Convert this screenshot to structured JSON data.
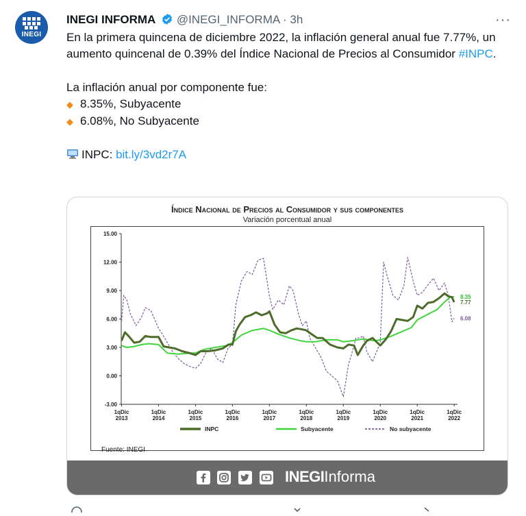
{
  "tweet": {
    "author": "INEGI INFORMA",
    "handle": "@INEGI_INFORMA",
    "separator": "·",
    "time": "3h",
    "more": "···",
    "avatar_text": "INEGI",
    "line1_pre": "En la primera quincena de diciembre 2022, la inflación general anual fue 7.77%, un aumento quincenal de 0.39% del Índice Nacional de Precios al Consumidor ",
    "hashtag": "#INPC",
    "line1_post": ".",
    "components_intro": "La inflación anual por componente fue:",
    "bullets": [
      "8.35%, Subyacente",
      "6.08%, No Subyacente"
    ],
    "bullet_glyph": "◆",
    "link_label": "INPC: ",
    "link_text": "bit.ly/3vd2r7A"
  },
  "card": {
    "title": "Índice Nacional de Precios al Consumidor y sus componentes",
    "subtitle": "Variación porcentual anual",
    "source": "Fuente: INEGI",
    "brand_bold": "INEGI",
    "brand_light": "Informa",
    "social_icons": [
      "facebook-icon",
      "instagram-icon",
      "twitter-icon",
      "youtube-icon"
    ]
  },
  "chart_data": {
    "type": "line",
    "title": "Índice Nacional de Precios al Consumidor y sus componentes",
    "subtitle": "Variación porcentual anual",
    "ylim": [
      -3,
      15
    ],
    "yticks": [
      "15.00",
      "12.00",
      "9.00",
      "6.00",
      "3.00",
      "0.00",
      "-3.00"
    ],
    "ytick_values": [
      15,
      12,
      9,
      6,
      3,
      0,
      -3
    ],
    "xlim": [
      2013.95,
      2023.05
    ],
    "xticks": [
      {
        "top": "1qDic",
        "bottom": "2013",
        "x": 2013.96
      },
      {
        "top": "1qDic",
        "bottom": "2014",
        "x": 2014.96
      },
      {
        "top": "1qDic",
        "bottom": "2015",
        "x": 2015.96
      },
      {
        "top": "1qDic",
        "bottom": "2016",
        "x": 2016.96
      },
      {
        "top": "1qDic",
        "bottom": "2017",
        "x": 2017.96
      },
      {
        "top": "1qDic",
        "bottom": "2018",
        "x": 2018.96
      },
      {
        "top": "1qDic",
        "bottom": "2019",
        "x": 2019.96
      },
      {
        "top": "1qDic",
        "bottom": "2020",
        "x": 2020.96
      },
      {
        "top": "1qDic",
        "bottom": "2021",
        "x": 2021.96
      },
      {
        "top": "1qDic",
        "bottom": "2022",
        "x": 2022.96
      }
    ],
    "series": [
      {
        "name": "INPC",
        "color": "#4d6b2a",
        "style": "solid",
        "width": 3,
        "x": [
          2013.96,
          2014.05,
          2014.15,
          2014.3,
          2014.45,
          2014.6,
          2014.75,
          2014.96,
          2015.1,
          2015.25,
          2015.4,
          2015.6,
          2015.8,
          2015.96,
          2016.1,
          2016.3,
          2016.5,
          2016.7,
          2016.85,
          2016.96,
          2017.05,
          2017.15,
          2017.3,
          2017.45,
          2017.6,
          2017.75,
          2017.9,
          2017.96,
          2018.1,
          2018.25,
          2018.4,
          2018.55,
          2018.7,
          2018.85,
          2018.96,
          2019.1,
          2019.25,
          2019.4,
          2019.6,
          2019.8,
          2019.96,
          2020.1,
          2020.25,
          2020.35,
          2020.5,
          2020.6,
          2020.75,
          2020.96,
          2021.1,
          2021.25,
          2021.4,
          2021.55,
          2021.7,
          2021.85,
          2021.96,
          2022.1,
          2022.25,
          2022.4,
          2022.55,
          2022.7,
          2022.8,
          2022.9,
          2022.96
        ],
        "y": [
          3.7,
          4.6,
          4.2,
          3.5,
          3.6,
          4.2,
          4.1,
          4.1,
          3.1,
          3.0,
          2.9,
          2.6,
          2.4,
          2.2,
          2.6,
          2.6,
          2.7,
          2.9,
          3.3,
          3.3,
          4.7,
          5.4,
          6.2,
          6.4,
          6.7,
          6.4,
          6.6,
          6.8,
          5.4,
          4.6,
          4.5,
          4.8,
          5.0,
          4.9,
          4.8,
          4.4,
          4.0,
          4.0,
          3.3,
          3.0,
          2.9,
          3.3,
          3.2,
          2.2,
          3.2,
          3.7,
          4.0,
          3.2,
          3.8,
          4.7,
          6.0,
          5.9,
          5.8,
          6.2,
          7.4,
          7.1,
          7.7,
          7.8,
          8.2,
          8.7,
          8.4,
          8.3,
          7.77
        ]
      },
      {
        "name": "Subyacente",
        "color": "#3fd43c",
        "style": "solid",
        "width": 2,
        "x": [
          2013.96,
          2014.1,
          2014.3,
          2014.5,
          2014.7,
          2014.96,
          2015.2,
          2015.5,
          2015.8,
          2015.96,
          2016.2,
          2016.5,
          2016.8,
          2016.96,
          2017.2,
          2017.5,
          2017.8,
          2017.96,
          2018.2,
          2018.5,
          2018.8,
          2018.96,
          2019.2,
          2019.5,
          2019.8,
          2019.96,
          2020.2,
          2020.5,
          2020.8,
          2020.96,
          2021.2,
          2021.5,
          2021.8,
          2021.96,
          2022.2,
          2022.5,
          2022.7,
          2022.85,
          2022.96
        ],
        "y": [
          3.2,
          3.0,
          3.1,
          3.3,
          3.4,
          3.3,
          2.4,
          2.3,
          2.4,
          2.4,
          2.8,
          3.0,
          3.2,
          3.5,
          4.3,
          4.8,
          5.0,
          4.8,
          4.4,
          4.0,
          3.7,
          3.6,
          3.6,
          3.8,
          3.8,
          3.6,
          3.7,
          3.9,
          3.7,
          3.8,
          4.1,
          4.6,
          5.1,
          5.9,
          6.4,
          7.0,
          7.8,
          8.3,
          8.35
        ]
      },
      {
        "name": "No subyacente",
        "color": "#7a5a9a",
        "style": "dashed",
        "width": 1.2,
        "x": [
          2013.96,
          2014.02,
          2014.1,
          2014.2,
          2014.35,
          2014.5,
          2014.6,
          2014.75,
          2014.85,
          2014.96,
          2015.05,
          2015.2,
          2015.35,
          2015.5,
          2015.65,
          2015.8,
          2015.96,
          2016.1,
          2016.25,
          2016.4,
          2016.55,
          2016.7,
          2016.85,
          2016.96,
          2017.05,
          2017.2,
          2017.35,
          2017.5,
          2017.65,
          2017.8,
          2017.96,
          2018.05,
          2018.2,
          2018.35,
          2018.5,
          2018.6,
          2018.75,
          2018.85,
          2018.96,
          2019.05,
          2019.2,
          2019.35,
          2019.5,
          2019.65,
          2019.8,
          2019.96,
          2020.1,
          2020.2,
          2020.3,
          2020.4,
          2020.5,
          2020.6,
          2020.75,
          2020.96,
          2021.05,
          2021.15,
          2021.3,
          2021.45,
          2021.6,
          2021.7,
          2021.85,
          2021.96,
          2022.1,
          2022.25,
          2022.4,
          2022.55,
          2022.7,
          2022.8,
          2022.9,
          2022.96
        ],
        "y": [
          5.8,
          8.5,
          8.0,
          6.5,
          5.3,
          6.2,
          7.2,
          6.9,
          6.0,
          5.0,
          4.5,
          3.5,
          2.5,
          1.8,
          1.3,
          1.0,
          0.8,
          1.3,
          2.5,
          2.9,
          1.8,
          1.4,
          3.0,
          3.2,
          7.5,
          10.0,
          11.0,
          10.7,
          12.2,
          12.4,
          8.4,
          7.0,
          8.0,
          7.5,
          9.5,
          9.0,
          6.5,
          5.3,
          5.8,
          4.0,
          3.0,
          2.0,
          0.5,
          0.0,
          -0.5,
          -2.2,
          1.2,
          2.5,
          4.0,
          4.0,
          4.2,
          2.5,
          1.5,
          3.5,
          12.0,
          10.5,
          8.5,
          8.0,
          9.5,
          12.5,
          10.0,
          8.5,
          8.8,
          9.6,
          10.3,
          9.0,
          9.8,
          8.5,
          5.7,
          6.08
        ]
      }
    ],
    "end_labels": [
      {
        "text": "8.35",
        "series": "Subyacente",
        "value": 8.35
      },
      {
        "text": "7.77",
        "series": "INPC",
        "value": 7.77
      },
      {
        "text": "6.08",
        "series": "No subyacente",
        "value": 6.08
      }
    ],
    "legend": [
      "INPC",
      "Subyacente",
      "No subyacente"
    ],
    "legend_position": "bottom",
    "grid": false
  }
}
